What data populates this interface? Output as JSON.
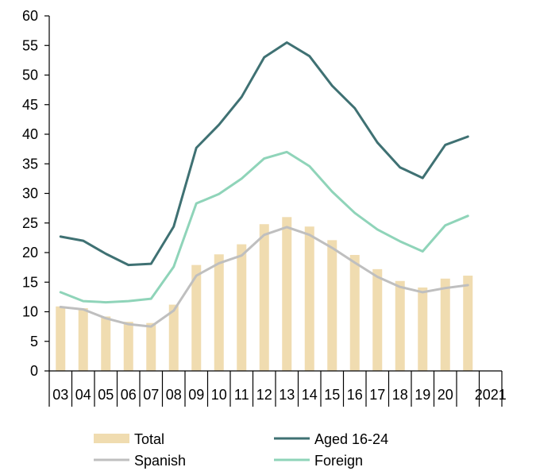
{
  "chart_data": {
    "type": "bar",
    "ylim": [
      0,
      60
    ],
    "yticks": [
      0,
      5,
      10,
      15,
      20,
      25,
      30,
      35,
      40,
      45,
      50,
      55,
      60
    ],
    "categories": [
      "03",
      "04",
      "05",
      "06",
      "07",
      "08",
      "09",
      "10",
      "11",
      "12",
      "13",
      "14",
      "15",
      "16",
      "17",
      "18",
      "19",
      "20",
      "2021"
    ],
    "series": [
      {
        "name": "Total",
        "kind": "bar",
        "color": "#f0dcb0",
        "values": [
          10.9,
          10.6,
          9.2,
          8.3,
          8.1,
          11.2,
          17.9,
          19.7,
          21.4,
          24.8,
          26.0,
          24.4,
          22.1,
          19.6,
          17.2,
          15.2,
          14.1,
          15.6,
          16.1
        ]
      },
      {
        "name": "Aged 16-24",
        "kind": "line",
        "color": "#3f7173",
        "values": [
          22.7,
          22.0,
          19.8,
          17.9,
          18.1,
          24.4,
          37.7,
          41.6,
          46.3,
          53.0,
          55.5,
          53.2,
          48.2,
          44.4,
          38.6,
          34.4,
          32.6,
          38.2,
          39.6
        ]
      },
      {
        "name": "Spanish",
        "kind": "line",
        "color": "#bfbfbf",
        "values": [
          10.8,
          10.4,
          8.9,
          7.9,
          7.5,
          10.2,
          16.1,
          18.2,
          19.5,
          23.0,
          24.3,
          23.0,
          20.8,
          18.3,
          15.9,
          14.2,
          13.3,
          14.0,
          14.5
        ]
      },
      {
        "name": "Foreign",
        "kind": "line",
        "color": "#8fd4b9",
        "values": [
          13.3,
          11.8,
          11.6,
          11.8,
          12.2,
          17.6,
          28.3,
          29.9,
          32.5,
          35.9,
          37.0,
          34.6,
          30.3,
          26.7,
          23.9,
          21.9,
          20.2,
          24.6,
          26.2
        ]
      }
    ],
    "legend": {
      "placement": "bottom",
      "items": [
        {
          "label": "Total",
          "marker": "bar",
          "color": "#f0dcb0"
        },
        {
          "label": "Aged 16-24",
          "marker": "line",
          "color": "#3f7173"
        },
        {
          "label": "Spanish",
          "marker": "line",
          "color": "#bfbfbf"
        },
        {
          "label": "Foreign",
          "marker": "line",
          "color": "#8fd4b9"
        }
      ]
    },
    "grid": false
  }
}
